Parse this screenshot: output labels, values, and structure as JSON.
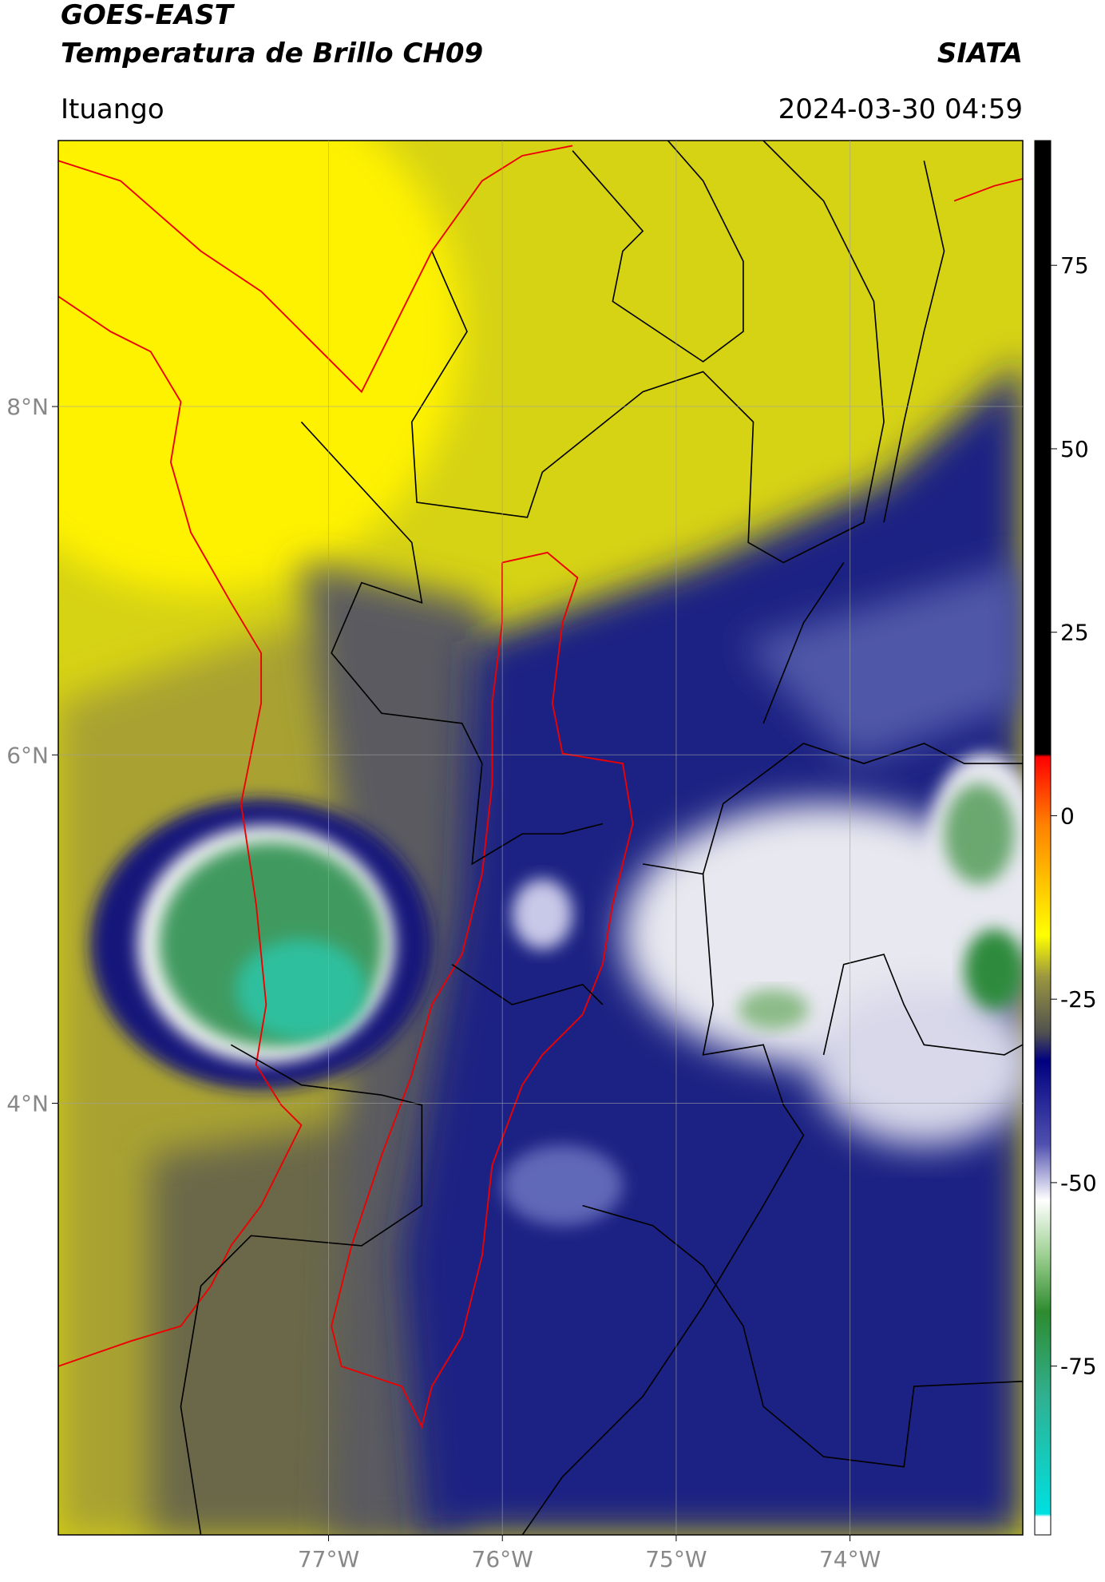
{
  "header": {
    "title": "GOES-EAST",
    "subtitle": "Temperatura de Brillo CH09",
    "source": "SIATA",
    "location": "Ituango",
    "timestamp": "2024-03-30 04:59"
  },
  "map": {
    "lonlim": [
      -78.555,
      -73.006
    ],
    "latlim": [
      1.522,
      9.527
    ],
    "grid": true,
    "lon_ticks": [
      {
        "value": -77,
        "label": "77°W"
      },
      {
        "value": -76,
        "label": "76°W"
      },
      {
        "value": -75,
        "label": "75°W"
      },
      {
        "value": -74,
        "label": "74°W"
      }
    ],
    "lat_ticks": [
      {
        "value": 8,
        "label": "8°N"
      },
      {
        "value": 6,
        "label": "6°N"
      },
      {
        "value": 4,
        "label": "4°N"
      }
    ]
  },
  "colorbar": {
    "lim": [
      -98,
      92
    ],
    "ticks": [
      75,
      50,
      25,
      0,
      -25,
      -50,
      -75
    ]
  }
}
